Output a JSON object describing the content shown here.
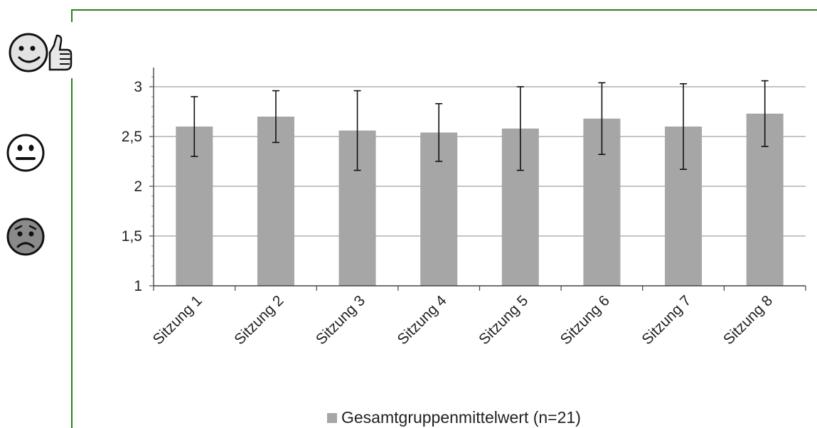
{
  "chart_data": {
    "type": "bar",
    "categories": [
      "Sitzung 1",
      "Sitzung 2",
      "Sitzung 3",
      "Sitzung 4",
      "Sitzung 5",
      "Sitzung 6",
      "Sitzung 7",
      "Sitzung 8"
    ],
    "series": [
      {
        "name": "Gesamtgruppenmittelwert (n=21)",
        "values": [
          2.6,
          2.7,
          2.56,
          2.54,
          2.58,
          2.68,
          2.6,
          2.73
        ],
        "error_low": [
          2.3,
          2.44,
          2.16,
          2.25,
          2.16,
          2.32,
          2.17,
          2.4
        ],
        "error_high": [
          2.9,
          2.96,
          2.96,
          2.83,
          3.0,
          3.04,
          3.03,
          3.06
        ],
        "color": "#a6a6a6"
      }
    ],
    "yticks": [
      "3",
      "2,5",
      "2",
      "1,5",
      "1"
    ],
    "ylim": [
      1,
      3.2
    ],
    "grid": true,
    "legend_position": "bottom"
  },
  "icons": [
    "smiley-thumbs-up-icon",
    "neutral-face-icon",
    "sad-face-icon"
  ],
  "colors": {
    "frame": "#2e7d1f",
    "bar": "#a6a6a6",
    "grid": "#a0a0a0"
  }
}
